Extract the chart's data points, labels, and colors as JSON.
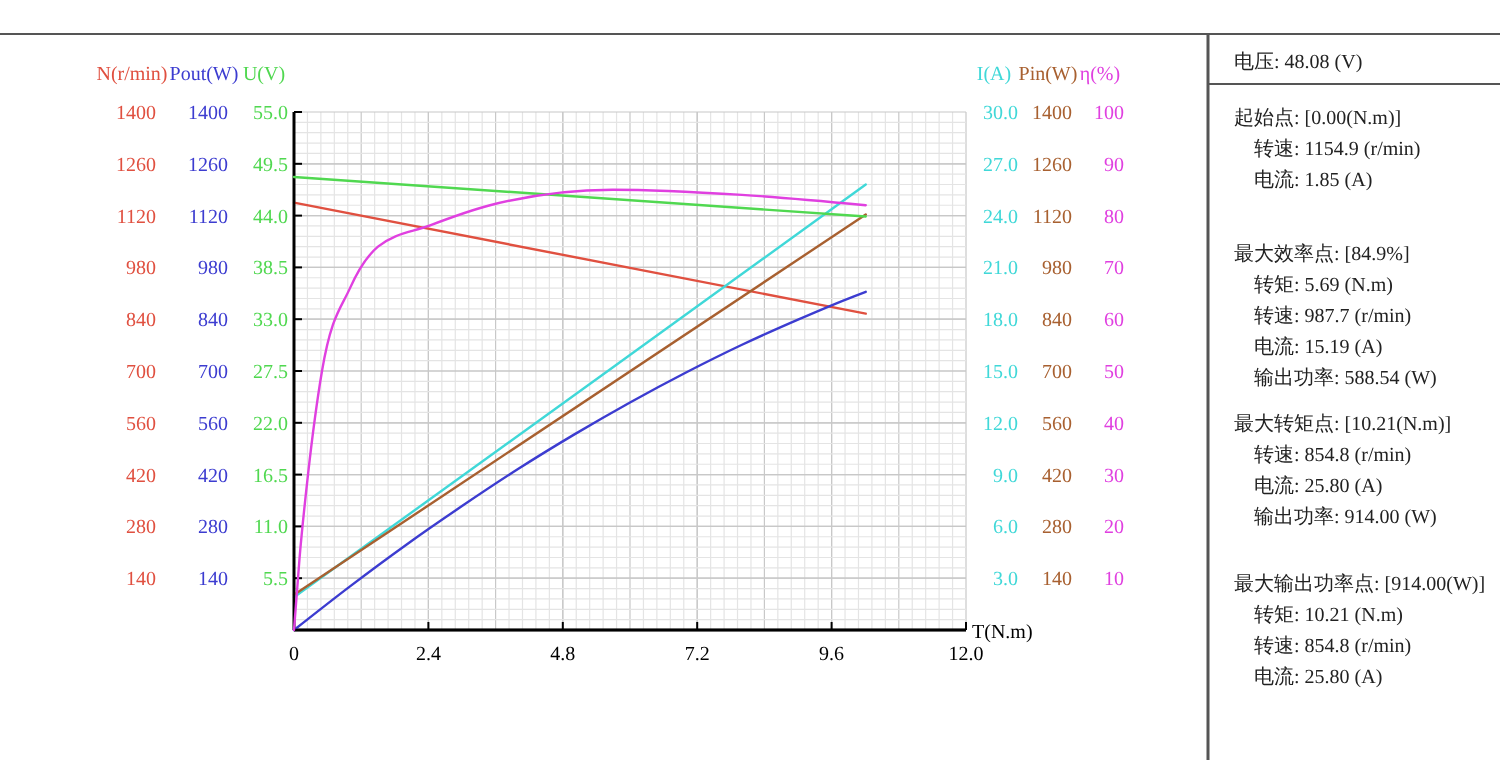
{
  "chart_data": [
    {
      "type": "line",
      "xlabel": "T(N.m)",
      "xlim": [
        0,
        12
      ],
      "xticks": [
        0,
        2.4,
        4.8,
        7.2,
        9.6,
        {
          "value": 12,
          "label": "12.0"
        }
      ],
      "ylim": [
        0,
        1400
      ],
      "yticks": [
        140,
        280,
        420,
        560,
        700,
        840,
        980,
        1120,
        1260,
        1400
      ],
      "y2lim": [
        0,
        30
      ],
      "y2ticks": [
        {
          "value": 3,
          "label": "3.0"
        },
        {
          "value": 6,
          "label": "6.0"
        },
        {
          "value": 9,
          "label": "9.0"
        },
        {
          "value": 12,
          "label": "12.0"
        },
        {
          "value": 15,
          "label": "15.0"
        },
        {
          "value": 18,
          "label": "18.0"
        },
        {
          "value": 21,
          "label": "21.0"
        },
        {
          "value": 24,
          "label": "24.0"
        },
        {
          "value": 27,
          "label": "27.0"
        },
        {
          "value": 30,
          "label": "30.0"
        }
      ],
      "grid": true,
      "marker": "none",
      "line_style": "solid",
      "series": [
        {
          "name": "N(r/min)",
          "axis": "y",
          "color": "#e05040",
          "x": [
            0,
            10.21
          ],
          "values": [
            1155,
            855
          ]
        },
        {
          "name": "I(A)",
          "axis": "y2",
          "color": "#40d8d8",
          "x": [
            0,
            5.69,
            10.21
          ],
          "values": [
            1.9,
            15.2,
            25.8
          ]
        }
      ],
      "annotations": [
        "电压:   48.08 (V)",
        "起始点: [0.00(N.m)]\n转速: 1154.9 (r/min)\n电流: 1.85 (A)",
        "最大效率点: [84.9%]\n转矩: 5.69 (N.m)\n转速: 987.7 (r/min)\n电流: 15.19 (A)\n输出功率: 588.54 (W)",
        "最大转矩点: [10.21(N.m)]\n转速: 854.8 (r/min)\n电流: 25.80 (A)\n输出功率: 914.00 (W)",
        "最大输出功率点: [914.00(W)]\n转矩: 10.21 (N.m)\n转速: 854.8 (r/min)\n电流: 25.80 (A)"
      ]
    },
    {
      "type": "line",
      "xlim": [
        0,
        12
      ],
      "ylim": [
        0,
        1400
      ],
      "yticks": [
        140,
        280,
        420,
        560,
        700,
        840,
        980,
        1120,
        1260,
        1400
      ],
      "y2lim": [
        0,
        1400
      ],
      "y2ticks": [
        140,
        280,
        420,
        560,
        700,
        840,
        980,
        1120,
        1260,
        1400
      ],
      "tick_labels": "y",
      "marker": "none",
      "line_style": "solid",
      "series": [
        {
          "name": "Pout(W)",
          "axis": "y",
          "color": "#3c3cd0",
          "x": [
            0,
            1,
            2,
            3,
            4,
            5,
            6,
            7,
            8,
            9,
            10,
            10.21
          ],
          "values": [
            0,
            118,
            230,
            335,
            435,
            528,
            615,
            696,
            771,
            839,
            902,
            914
          ]
        },
        {
          "name": "Pin(W)",
          "axis": "y2",
          "color": "#a86030",
          "x": [
            0,
            10.21
          ],
          "values": [
            95,
            1123
          ]
        }
      ]
    },
    {
      "type": "line",
      "xlim": [
        0,
        12
      ],
      "ylim": [
        0,
        55
      ],
      "yticks": [
        5.5,
        {
          "value": 11,
          "label": "11.0"
        },
        16.5,
        {
          "value": 22,
          "label": "22.0"
        },
        27.5,
        {
          "value": 33,
          "label": "33.0"
        },
        38.5,
        {
          "value": 44,
          "label": "44.0"
        },
        49.5,
        {
          "value": 55,
          "label": "55.0"
        }
      ],
      "y2lim": [
        0,
        100
      ],
      "y2ticks": [
        10,
        20,
        30,
        40,
        50,
        60,
        70,
        80,
        90,
        100
      ],
      "tick_labels": "y",
      "marker": "none",
      "line_style": "solid",
      "series": [
        {
          "name": "U(V)",
          "axis": "y",
          "color": "#50d850",
          "x": [
            0,
            10.21
          ],
          "values": [
            48.1,
            43.9
          ]
        },
        {
          "name": "η(%)",
          "axis": "y2",
          "color": "#e040e0",
          "x": [
            0,
            0.1,
            0.25,
            0.5,
            1,
            1.5,
            2.4,
            3.5,
            5.69,
            8,
            10.21
          ],
          "values": [
            0,
            14,
            30,
            50,
            66,
            74,
            78,
            82,
            85,
            84,
            82
          ]
        }
      ]
    }
  ]
}
